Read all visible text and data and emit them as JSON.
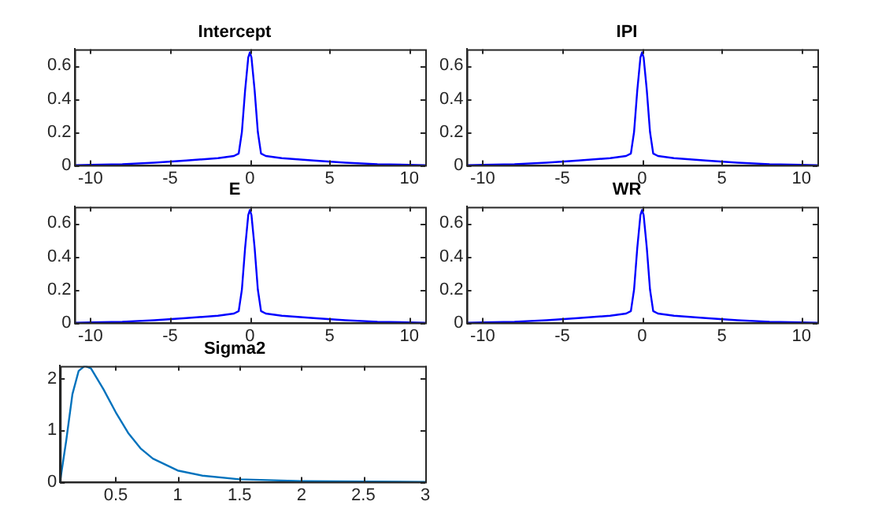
{
  "chart_data": [
    {
      "type": "line",
      "title": "Intercept",
      "x": [
        -11,
        -10,
        -8,
        -6,
        -4,
        -2,
        -1,
        -0.7,
        -0.5,
        -0.3,
        -0.1,
        0,
        0.1,
        0.3,
        0.5,
        0.7,
        1,
        2,
        4,
        6,
        8,
        10,
        11
      ],
      "series": [
        {
          "color": "#0000ff",
          "values": [
            0,
            0.002,
            0.006,
            0.015,
            0.028,
            0.042,
            0.055,
            0.07,
            0.2,
            0.45,
            0.65,
            0.68,
            0.65,
            0.45,
            0.2,
            0.07,
            0.055,
            0.042,
            0.028,
            0.015,
            0.006,
            0.002,
            0
          ]
        }
      ],
      "xlim": [
        -11,
        11
      ],
      "xticks": [
        -10,
        -5,
        0,
        5,
        10
      ],
      "ylim": [
        0,
        0.7
      ],
      "yticks": [
        0,
        0.2,
        0.4,
        0.6
      ]
    },
    {
      "type": "line",
      "title": "IPI",
      "x": [
        -11,
        -10,
        -8,
        -6,
        -4,
        -2,
        -1,
        -0.7,
        -0.5,
        -0.3,
        -0.1,
        0,
        0.1,
        0.3,
        0.5,
        0.7,
        1,
        2,
        4,
        6,
        8,
        10,
        11
      ],
      "series": [
        {
          "color": "#0000ff",
          "values": [
            0,
            0.002,
            0.006,
            0.015,
            0.028,
            0.042,
            0.055,
            0.07,
            0.2,
            0.45,
            0.65,
            0.68,
            0.65,
            0.45,
            0.2,
            0.07,
            0.055,
            0.042,
            0.028,
            0.015,
            0.006,
            0.002,
            0
          ]
        }
      ],
      "xlim": [
        -11,
        11
      ],
      "xticks": [
        -10,
        -5,
        0,
        5,
        10
      ],
      "ylim": [
        0,
        0.7
      ],
      "yticks": [
        0,
        0.2,
        0.4,
        0.6
      ]
    },
    {
      "type": "line",
      "title": "E",
      "x": [
        -11,
        -10,
        -8,
        -6,
        -4,
        -2,
        -1,
        -0.7,
        -0.5,
        -0.3,
        -0.1,
        0,
        0.1,
        0.3,
        0.5,
        0.7,
        1,
        2,
        4,
        6,
        8,
        10,
        11
      ],
      "series": [
        {
          "color": "#0000ff",
          "values": [
            0,
            0.002,
            0.006,
            0.015,
            0.028,
            0.042,
            0.055,
            0.07,
            0.2,
            0.45,
            0.65,
            0.68,
            0.65,
            0.45,
            0.2,
            0.07,
            0.055,
            0.042,
            0.028,
            0.015,
            0.006,
            0.002,
            0
          ]
        }
      ],
      "xlim": [
        -11,
        11
      ],
      "xticks": [
        -10,
        -5,
        0,
        5,
        10
      ],
      "ylim": [
        0,
        0.7
      ],
      "yticks": [
        0,
        0.2,
        0.4,
        0.6
      ]
    },
    {
      "type": "line",
      "title": "WR",
      "x": [
        -11,
        -10,
        -8,
        -6,
        -4,
        -2,
        -1,
        -0.7,
        -0.5,
        -0.3,
        -0.1,
        0,
        0.1,
        0.3,
        0.5,
        0.7,
        1,
        2,
        4,
        6,
        8,
        10,
        11
      ],
      "series": [
        {
          "color": "#0000ff",
          "values": [
            0,
            0.002,
            0.006,
            0.015,
            0.028,
            0.042,
            0.055,
            0.07,
            0.2,
            0.45,
            0.65,
            0.68,
            0.65,
            0.45,
            0.2,
            0.07,
            0.055,
            0.042,
            0.028,
            0.015,
            0.006,
            0.002,
            0
          ]
        }
      ],
      "xlim": [
        -11,
        11
      ],
      "xticks": [
        -10,
        -5,
        0,
        5,
        10
      ],
      "ylim": [
        0,
        0.7
      ],
      "yticks": [
        0,
        0.2,
        0.4,
        0.6
      ]
    },
    {
      "type": "line",
      "title": "Sigma2",
      "x": [
        0.05,
        0.1,
        0.15,
        0.2,
        0.25,
        0.3,
        0.4,
        0.5,
        0.6,
        0.7,
        0.8,
        1,
        1.2,
        1.5,
        2,
        2.5,
        3
      ],
      "series": [
        {
          "color": "#0072bd",
          "values": [
            0,
            0.8,
            1.7,
            2.15,
            2.25,
            2.2,
            1.8,
            1.35,
            0.95,
            0.65,
            0.45,
            0.22,
            0.12,
            0.05,
            0.015,
            0.005,
            0
          ]
        }
      ],
      "xlim": [
        0.05,
        3
      ],
      "xticks": [
        0.5,
        1,
        1.5,
        2,
        2.5,
        3
      ],
      "ylim": [
        0,
        2.25
      ],
      "yticks": [
        0,
        1,
        2
      ]
    }
  ]
}
